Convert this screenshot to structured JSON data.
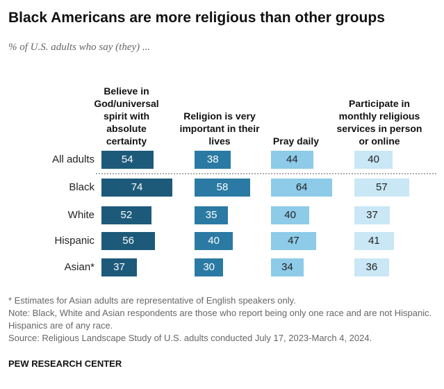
{
  "chart_data": {
    "type": "bar",
    "title": "Black Americans are more religious than other groups",
    "subtitle": "% of U.S. adults who say (they) ...",
    "categories": [
      "All adults",
      "Black",
      "White",
      "Hispanic",
      "Asian*"
    ],
    "series": [
      {
        "name": "Believe in God/universal spirit with absolute certainty",
        "color": "#1d5a7a",
        "values": [
          54,
          74,
          52,
          56,
          37
        ]
      },
      {
        "name": "Religion is very important in their lives",
        "color": "#2b7aa3",
        "values": [
          38,
          58,
          35,
          40,
          30
        ]
      },
      {
        "name": "Pray daily",
        "color": "#8dcbe8",
        "values": [
          44,
          64,
          40,
          47,
          34
        ]
      },
      {
        "name": "Participate in monthly religious services in person or online",
        "color": "#c9e7f5",
        "values": [
          40,
          57,
          37,
          41,
          36
        ]
      }
    ],
    "notes": [
      "* Estimates for Asian adults are representative of English speakers only.",
      "Note: Black, White and Asian respondents are those who report being only one race and are not Hispanic. Hispanics are of any race.",
      "Source: Religious Landscape Study of U.S. adults conducted July 17, 2023-March 4, 2024."
    ],
    "source_org": "PEW RESEARCH CENTER"
  }
}
